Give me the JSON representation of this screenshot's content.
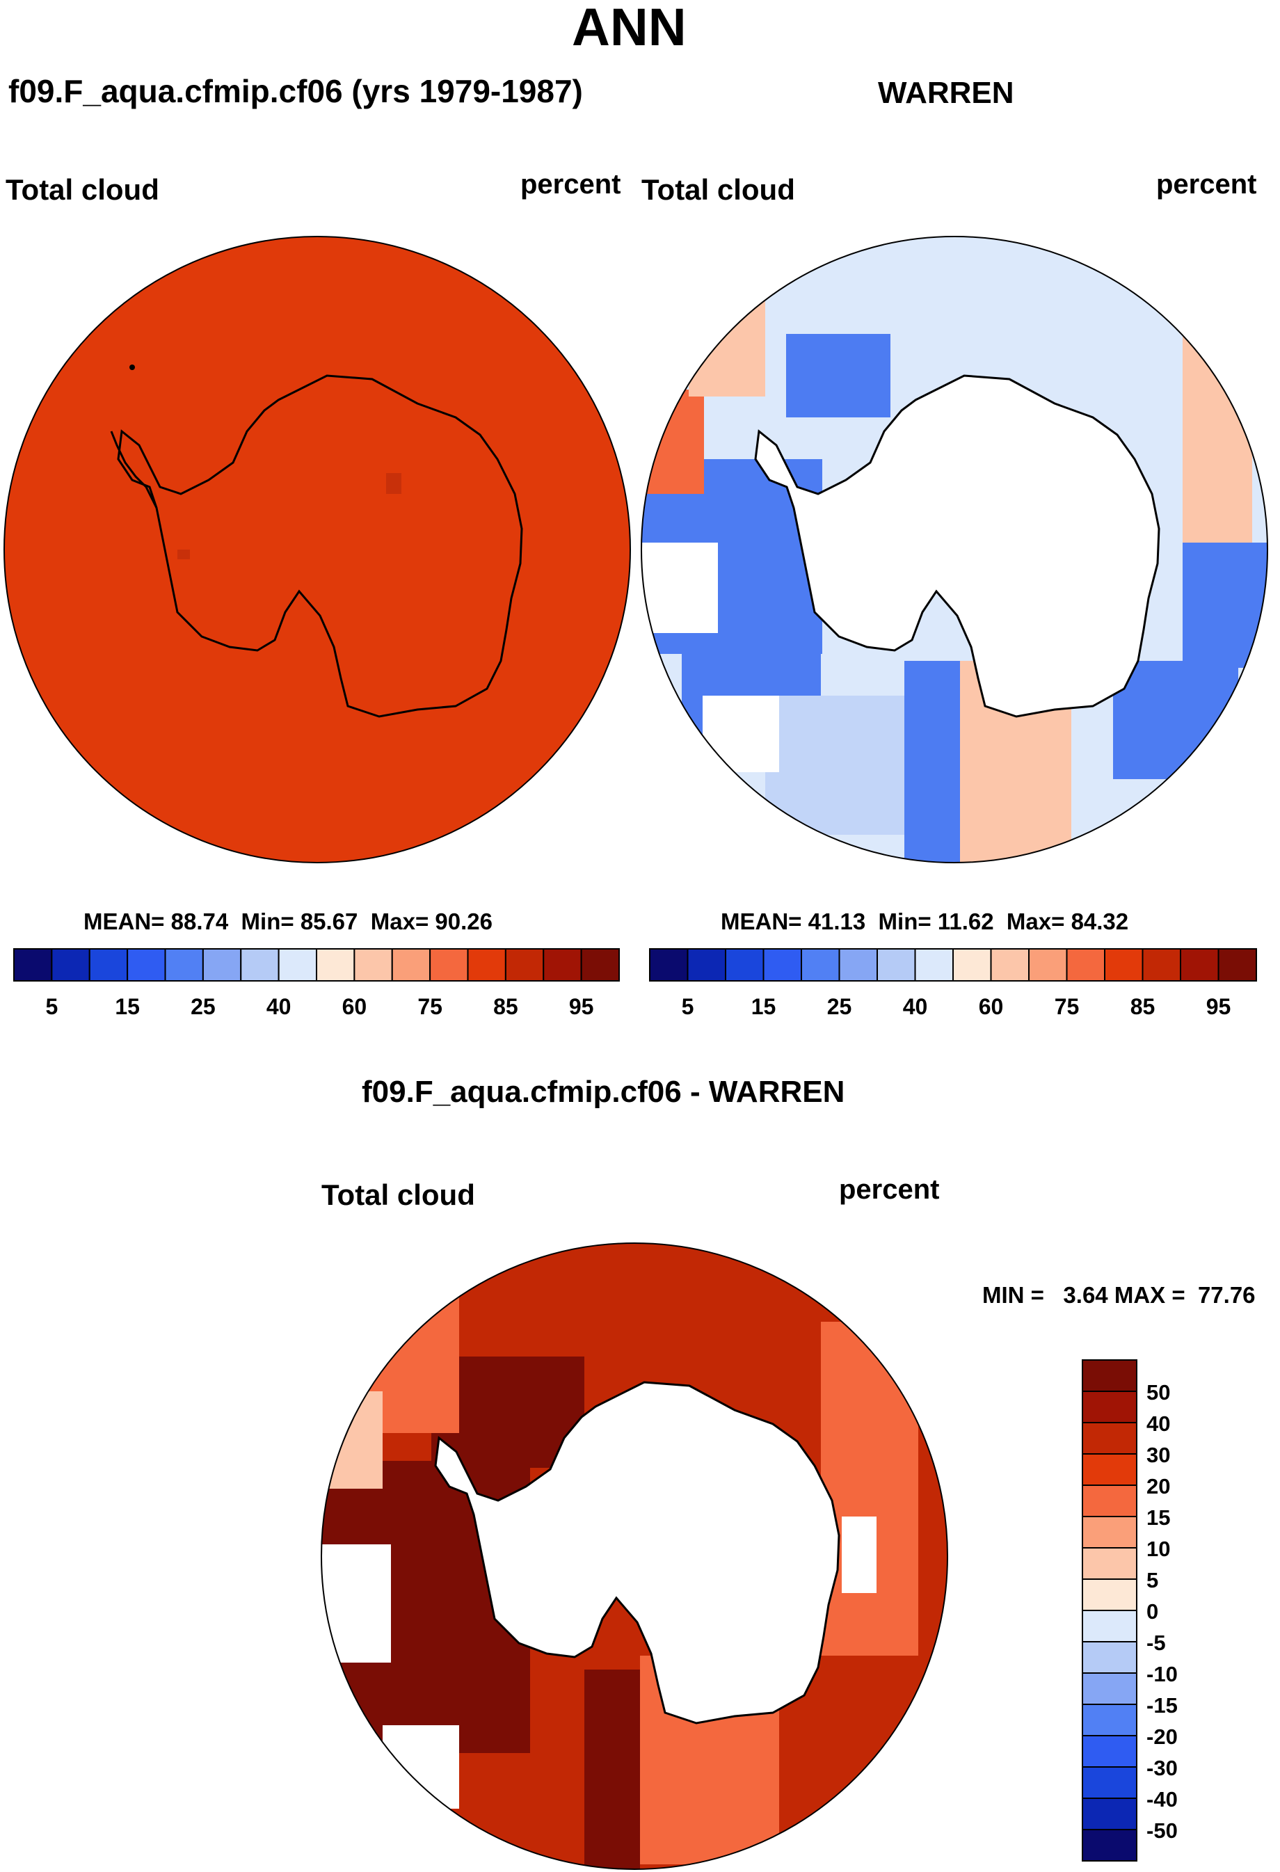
{
  "page": {
    "title": "ANN",
    "diff_title": "f09.F_aqua.cfmip.cf06 - WARREN"
  },
  "panels": [
    {
      "id": "model",
      "case_title": "f09.F_aqua.cfmip.cf06 (yrs 1979-1987)",
      "variable": "Total cloud",
      "units": "percent",
      "stats": {
        "mean_label": "MEAN=",
        "mean": "88.74",
        "min_label": "Min=",
        "min": "85.67",
        "max_label": "Max=",
        "max": "90.26"
      }
    },
    {
      "id": "obs",
      "case_title": "WARREN",
      "variable": "Total cloud",
      "units": "percent",
      "stats": {
        "mean_label": "MEAN=",
        "mean": "41.13",
        "min_label": "Min=",
        "min": "11.62",
        "max_label": "Max=",
        "max": "84.32"
      }
    },
    {
      "id": "diff",
      "variable": "Total cloud",
      "units": "percent",
      "stats_text": "MIN =   3.64 MAX =  77.76"
    }
  ],
  "colorbar_abs": {
    "colors": [
      "#0a0a6e",
      "#0c27b4",
      "#1a46dc",
      "#2f5cf2",
      "#5180f4",
      "#86a6f4",
      "#b5cbf6",
      "#dce9fb",
      "#fde8d6",
      "#fcc6aa",
      "#fa9f79",
      "#f4683e",
      "#e23a0a",
      "#c22805",
      "#a01405",
      "#7a0d05"
    ],
    "tick_labels": [
      "5",
      "15",
      "25",
      "40",
      "60",
      "75",
      "85",
      "95"
    ]
  },
  "colorbar_diff": {
    "colors": [
      "#0a0a6e",
      "#0c27b4",
      "#1a46dc",
      "#2f5cf2",
      "#5180f4",
      "#86a6f4",
      "#b5cbf6",
      "#dce9fb",
      "#fde8d6",
      "#fcc6aa",
      "#fa9f79",
      "#f4683e",
      "#e23a0a",
      "#c22805",
      "#a01405",
      "#7a0d05"
    ],
    "tick_labels": [
      "-50",
      "-40",
      "-30",
      "-20",
      "-15",
      "-10",
      "-5",
      "0",
      "5",
      "10",
      "15",
      "20",
      "30",
      "40",
      "50"
    ]
  },
  "colors": {
    "model_field": "#e03a0a",
    "land": "#ffffff",
    "coast": "#000000"
  }
}
